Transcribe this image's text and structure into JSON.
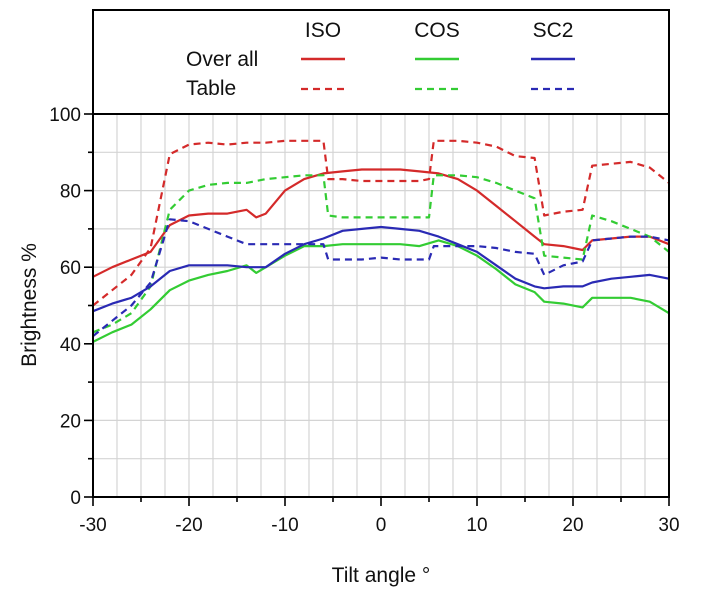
{
  "chart_data": {
    "type": "line",
    "xlabel": "Tilt angle °",
    "ylabel": "Brightness %",
    "xlim": [
      -30,
      30
    ],
    "ylim": [
      0,
      100
    ],
    "xticks": [
      -30,
      -20,
      -10,
      0,
      10,
      20,
      30
    ],
    "yticks": [
      0,
      20,
      40,
      60,
      80,
      100
    ],
    "grid": true,
    "legend": {
      "placement": "top",
      "columns": [
        "ISO",
        "COS",
        "SC2"
      ],
      "rows": [
        "Over all",
        "Table"
      ]
    },
    "colors": {
      "ISO": "#d42a2a",
      "COS": "#33cc33",
      "SC2": "#2a2ab4"
    },
    "series": [
      {
        "name": "ISO Over all",
        "group": "ISO",
        "style": "solid",
        "color": "#d42a2a",
        "x": [
          -30,
          -28,
          -26,
          -24,
          -22,
          -20,
          -18,
          -16,
          -14,
          -13,
          -12,
          -10,
          -8,
          -6,
          -4,
          -2,
          0,
          2,
          4,
          6,
          8,
          10,
          12,
          14,
          16,
          17,
          19,
          21,
          22,
          24,
          26,
          28,
          30
        ],
        "y": [
          57.5,
          60,
          62,
          64,
          71,
          73.5,
          74,
          74,
          75,
          73,
          74,
          80,
          83,
          84.5,
          85,
          85.5,
          85.5,
          85.5,
          85,
          84.5,
          83,
          80,
          76,
          72,
          68,
          66,
          65.5,
          64.5,
          67,
          67.5,
          68,
          68,
          66
        ]
      },
      {
        "name": "ISO Table",
        "group": "ISO",
        "style": "dashed",
        "color": "#d42a2a",
        "x": [
          -30,
          -28,
          -26,
          -24,
          -22,
          -20,
          -18,
          -16,
          -14,
          -12,
          -10,
          -8,
          -6,
          -5.5,
          -4,
          -2,
          0,
          2,
          4,
          5,
          5.5,
          8,
          10,
          12,
          14,
          16,
          17,
          19,
          21,
          22,
          24,
          26,
          28,
          30
        ],
        "y": [
          50,
          54,
          58,
          65,
          89.5,
          92,
          92.5,
          92,
          92.5,
          92.5,
          93,
          93,
          93,
          83,
          83,
          82.5,
          82.5,
          82.5,
          82.5,
          83,
          93,
          93,
          92.5,
          91.5,
          89,
          88.5,
          73.5,
          74.5,
          75,
          86.5,
          87,
          87.5,
          86,
          82
        ]
      },
      {
        "name": "COS Over all",
        "group": "COS",
        "style": "solid",
        "color": "#33cc33",
        "x": [
          -30,
          -28,
          -26,
          -24,
          -22,
          -20,
          -18,
          -16,
          -14,
          -13,
          -12,
          -10,
          -8,
          -6,
          -4,
          -2,
          0,
          2,
          4,
          6,
          8,
          10,
          12,
          14,
          16,
          17,
          19,
          21,
          22,
          24,
          26,
          28,
          30
        ],
        "y": [
          40.5,
          43,
          45,
          49,
          54,
          56.5,
          58,
          59,
          60.5,
          58.5,
          60,
          63,
          65.5,
          65.5,
          66,
          66,
          66,
          66,
          65.5,
          67,
          65.5,
          63,
          59.5,
          55.5,
          53.5,
          51,
          50.5,
          49.5,
          52,
          52,
          52,
          51,
          48
        ]
      },
      {
        "name": "COS Table",
        "group": "COS",
        "style": "dashed",
        "color": "#33cc33",
        "x": [
          -30,
          -28,
          -26,
          -24,
          -22,
          -20,
          -18,
          -16,
          -14,
          -12,
          -10,
          -8,
          -6,
          -5.5,
          -4,
          -2,
          0,
          2,
          4,
          5,
          5.5,
          8,
          10,
          12,
          14,
          16,
          17,
          19,
          21,
          22,
          24,
          26,
          28,
          30
        ],
        "y": [
          43,
          45,
          48,
          55,
          75,
          80,
          81.5,
          82,
          82,
          83,
          83.5,
          84,
          84,
          73.5,
          73,
          73,
          73,
          73,
          73,
          73,
          84,
          84,
          83.5,
          82,
          80,
          78,
          63,
          62.5,
          62,
          73.5,
          72,
          70,
          68,
          64
        ]
      },
      {
        "name": "SC2 Over all",
        "group": "SC2",
        "style": "solid",
        "color": "#2a2ab4",
        "x": [
          -30,
          -28,
          -26,
          -24,
          -22,
          -20,
          -18,
          -16,
          -14,
          -12,
          -10,
          -8,
          -6,
          -4,
          -2,
          0,
          2,
          4,
          6,
          8,
          10,
          12,
          14,
          16,
          17,
          19,
          21,
          22,
          24,
          26,
          28,
          30
        ],
        "y": [
          48.5,
          50.5,
          52,
          55,
          59,
          60.5,
          60.5,
          60.5,
          60,
          60,
          63.5,
          66,
          67.5,
          69.5,
          70,
          70.5,
          70,
          69.5,
          68,
          66,
          64,
          60.5,
          57,
          55,
          54.5,
          55,
          55,
          56,
          57,
          57.5,
          58,
          57
        ]
      },
      {
        "name": "SC2 Table",
        "group": "SC2",
        "style": "dashed",
        "color": "#2a2ab4",
        "x": [
          -30,
          -28,
          -26,
          -24,
          -22,
          -20,
          -18,
          -16,
          -14,
          -12,
          -10,
          -8,
          -6,
          -5.5,
          -4,
          -2,
          0,
          2,
          4,
          5,
          5.5,
          8,
          10,
          12,
          14,
          16,
          17,
          19,
          21,
          22,
          24,
          26,
          28,
          30
        ],
        "y": [
          42,
          46,
          50,
          56,
          72.5,
          72,
          70,
          68,
          66,
          66,
          66,
          66,
          66,
          62,
          62,
          62,
          62.5,
          62,
          62,
          62,
          65.5,
          65.5,
          65.5,
          65,
          64,
          63.5,
          58,
          60.5,
          61.5,
          67,
          67.5,
          68,
          68,
          67
        ]
      }
    ]
  }
}
